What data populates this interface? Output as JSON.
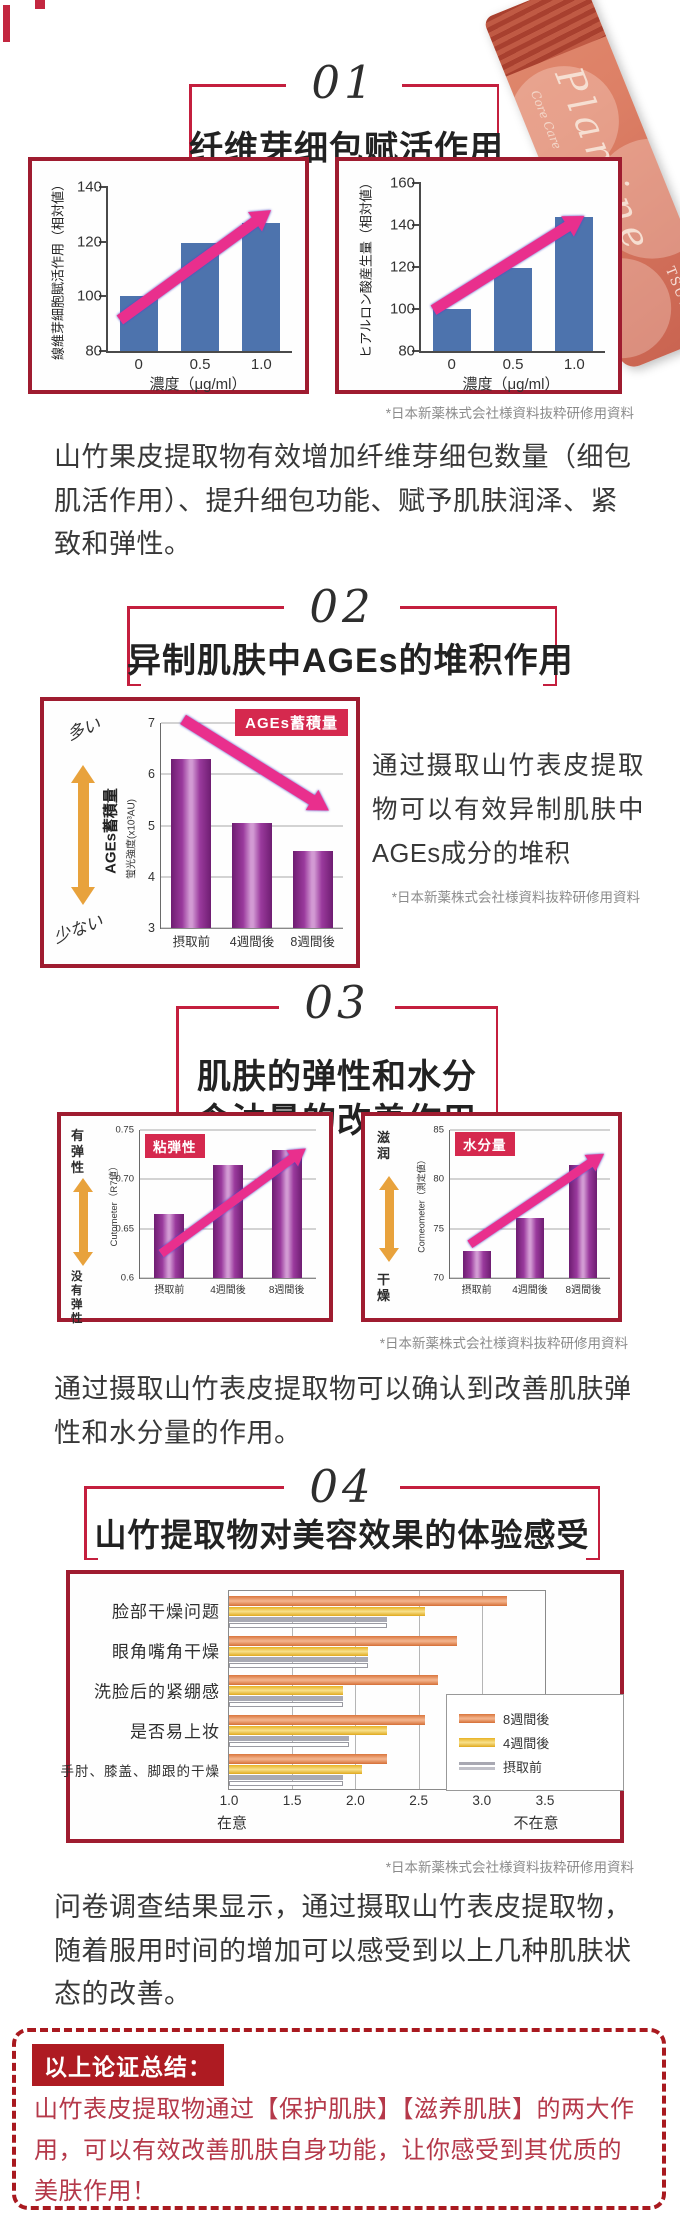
{
  "product": {
    "brand": "Plamine",
    "subtitle": "Core Care",
    "side_text": "TSUY"
  },
  "sections": [
    {
      "number": "01",
      "title": "纤维芽细包赋活作用",
      "paragraph": "山竹果皮提取物有效增加纤维芽细包数量（细包肌活作用）、提升细包功能、赋予肌肤润泽、紧致和弹性。",
      "source_note": "*日本新薬株式会社様資料抜粋研修用資料"
    },
    {
      "number": "02",
      "title": "异制肌肤中AGEs的堆积作用",
      "paragraph": "通过摄取山竹表皮提取物可以有效异制肌肤中AGEs成分的堆积",
      "source_note": "*日本新薬株式会社様資料抜粋研修用資料"
    },
    {
      "number": "03",
      "title_line1": "肌肤的弹性和水分",
      "title_line2": "含油量的改善作用",
      "paragraph": "通过摄取山竹表皮提取物可以确认到改善肌肤弹性和水分量的作用。",
      "source_note": "*日本新薬株式会社様資料抜粋研修用資料"
    },
    {
      "number": "04",
      "title": "山竹提取物对美容效果的体验感受",
      "paragraph": "问卷调查结果显示，通过摄取山竹表皮提取物，随着服用时间的增加可以感受到以上几种肌肤状态的改善。",
      "source_note": "*日本新薬株式会社様資料抜粋研修用資料"
    }
  ],
  "summary": {
    "title": "以上论证总结：",
    "body": "山竹表皮提取物通过【保护肌肤】【滋养肌肤】的两大作用，可以有效改善肌肤自身功能，让你感受到其优质的美肤作用！"
  },
  "chart_data": [
    {
      "id": "fibroblast-activation",
      "type": "bar",
      "ylabel": "線維芽細胞賦活作用（相対値）",
      "xlabel": "濃度（μg/ml）",
      "categories": [
        "0",
        "0.5",
        "1.0"
      ],
      "values": [
        100,
        119.5,
        127
      ],
      "ylim": [
        80,
        140
      ],
      "yticks": [
        "140",
        "120",
        "100",
        "80"
      ],
      "bar_color": "#4d73ad",
      "annotation": "rising pink arrow",
      "grid": false
    },
    {
      "id": "hyaluronic-acid-production",
      "type": "bar",
      "ylabel": "ヒアルロン酸産生量（相対値）",
      "xlabel": "濃度（μg/ml）",
      "categories": [
        "0",
        "0.5",
        "1.0"
      ],
      "values": [
        100,
        119.5,
        144
      ],
      "ylim": [
        80,
        160
      ],
      "yticks": [
        "160",
        "140",
        "120",
        "100",
        "80"
      ],
      "bar_color": "#4d73ad",
      "annotation": "rising pink arrow",
      "grid": false
    },
    {
      "id": "ages-accumulation",
      "type": "bar",
      "label_box": "AGEs蓄積量",
      "ylabel": "AGEs蓄積量",
      "ylabel_sub": "蛍光強度(x10³AU)",
      "side_top": "多い",
      "side_bottom": "少ない",
      "categories": [
        "摂取前",
        "4週間後",
        "8週間後"
      ],
      "values": [
        6.3,
        5.05,
        4.5
      ],
      "ylim": [
        3,
        7
      ],
      "yticks": [
        "7",
        "6",
        "5",
        "4",
        "3"
      ],
      "bar_color": "#8a2b8d",
      "annotation": "falling pink arrow",
      "grid": true
    },
    {
      "id": "viscoelasticity",
      "type": "bar",
      "label_box": "粘弾性",
      "ylabel": "Cutometer（R7値）",
      "side_top": "有弹性",
      "side_bottom": "没有弹性",
      "categories": [
        "摂取前",
        "4週間後",
        "8週間後"
      ],
      "values": [
        0.665,
        0.715,
        0.73
      ],
      "ylim": [
        0.6,
        0.75
      ],
      "yticks": [
        "0.75",
        "0.70",
        "0.65",
        "0.6"
      ],
      "bar_color": "#8a2b8d",
      "annotation": "rising pink arrow",
      "grid": true
    },
    {
      "id": "moisture",
      "type": "bar",
      "label_box": "水分量",
      "ylabel": "Corneometer（測定値）",
      "side_top": "滋润",
      "side_bottom": "干燥",
      "categories": [
        "摂取前",
        "4週間後",
        "8週間後"
      ],
      "values": [
        72.7,
        76.1,
        81.5
      ],
      "ylim": [
        70,
        85
      ],
      "yticks": [
        "85",
        "80",
        "75",
        "70"
      ],
      "bar_color": "#8a2b8d",
      "annotation": "rising pink arrow",
      "grid": true
    },
    {
      "id": "beauty-survey",
      "type": "bar-horizontal",
      "categories": [
        "脸部干燥问题",
        "眼角嘴角干燥",
        "洗脸后的紧绷感",
        "是否易上妆",
        "手肘、膝盖、脚跟的干燥"
      ],
      "series": [
        {
          "name": "8週間後",
          "color": "#dd7b42",
          "values": [
            3.2,
            2.8,
            2.65,
            2.55,
            2.25
          ]
        },
        {
          "name": "4週間後",
          "color": "#edb92d",
          "values": [
            2.55,
            2.1,
            1.9,
            2.25,
            2.05
          ]
        },
        {
          "name": "摂取前",
          "color": "#a9aab4",
          "values": [
            2.25,
            2.1,
            1.9,
            1.95,
            1.9
          ]
        }
      ],
      "xlim": [
        1.0,
        3.5
      ],
      "xticks": [
        "1.0",
        "1.5",
        "2.0",
        "2.5",
        "3.0",
        "3.5"
      ],
      "x_left_label": "在意",
      "x_right_label": "不在意",
      "legend_position": "right-inside",
      "grid": true
    }
  ],
  "colors": {
    "frame_red": "#9f1c30",
    "bracket_red": "#c41f3e",
    "arrow_pink": "#e92f8d",
    "arrow_orange": "#e8a23c",
    "bar_blue": "#4d73ad",
    "bar_purple": "#8a2b8d",
    "label_box_red": "#d5294e",
    "summary_red": "#ae1b22",
    "caption_gray": "#8b8b8b"
  }
}
